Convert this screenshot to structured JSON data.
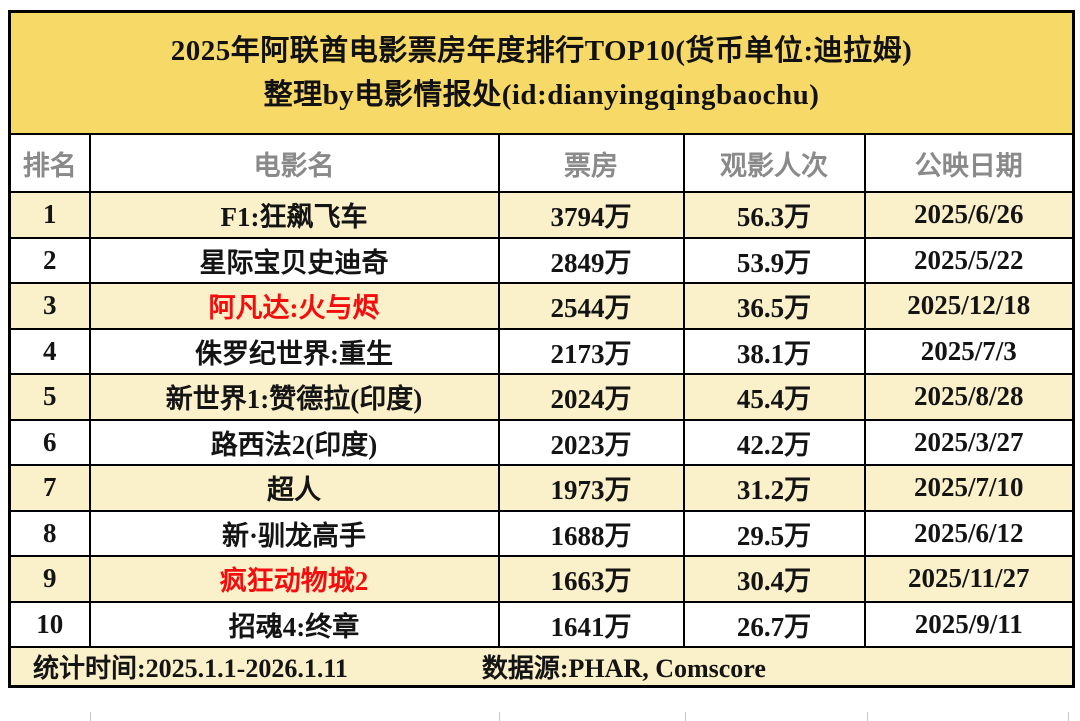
{
  "title": {
    "line1": "2025年阿联酋电影票房年度排行TOP10(货币单位:迪拉姆)",
    "line2": "整理by电影情报处(id:dianyingqingbaochu)"
  },
  "columns": {
    "rank": "排名",
    "movie": "电影名",
    "box_office": "票房",
    "admissions": "观影人次",
    "release_date": "公映日期"
  },
  "rows": [
    {
      "rank": "1",
      "movie": "F1:狂飙飞车",
      "box_office": "3794万",
      "admissions": "56.3万",
      "release_date": "2025/6/26"
    },
    {
      "rank": "2",
      "movie": "星际宝贝史迪奇",
      "box_office": "2849万",
      "admissions": "53.9万",
      "release_date": "2025/5/22"
    },
    {
      "rank": "3",
      "movie": "阿凡达:火与烬",
      "box_office": "2544万",
      "admissions": "36.5万",
      "release_date": "2025/12/18"
    },
    {
      "rank": "4",
      "movie": "侏罗纪世界:重生",
      "box_office": "2173万",
      "admissions": "38.1万",
      "release_date": "2025/7/3"
    },
    {
      "rank": "5",
      "movie": "新世界1:赞德拉(印度)",
      "box_office": "2024万",
      "admissions": "45.4万",
      "release_date": "2025/8/28"
    },
    {
      "rank": "6",
      "movie": "路西法2(印度)",
      "box_office": "2023万",
      "admissions": "42.2万",
      "release_date": "2025/3/27"
    },
    {
      "rank": "7",
      "movie": "超人",
      "box_office": "1973万",
      "admissions": "31.2万",
      "release_date": "2025/7/10"
    },
    {
      "rank": "8",
      "movie": "新·驯龙高手",
      "box_office": "1688万",
      "admissions": "29.5万",
      "release_date": "2025/6/12"
    },
    {
      "rank": "9",
      "movie": "疯狂动物城2",
      "box_office": "1663万",
      "admissions": "30.4万",
      "release_date": "2025/11/27"
    },
    {
      "rank": "10",
      "movie": "招魂4:终章",
      "box_office": "1641万",
      "admissions": "26.7万",
      "release_date": "2025/9/11"
    }
  ],
  "footer": {
    "stat_time": "统计时间:2025.1.1-2026.1.11",
    "data_source": "数据源:PHAR, Comscore"
  },
  "colors": {
    "title_background": "#f6d967",
    "row_stripe": "#faf0ca",
    "highlight_text": "#f50d0d",
    "header_text": "#8a8a8a",
    "border": "#000000"
  }
}
